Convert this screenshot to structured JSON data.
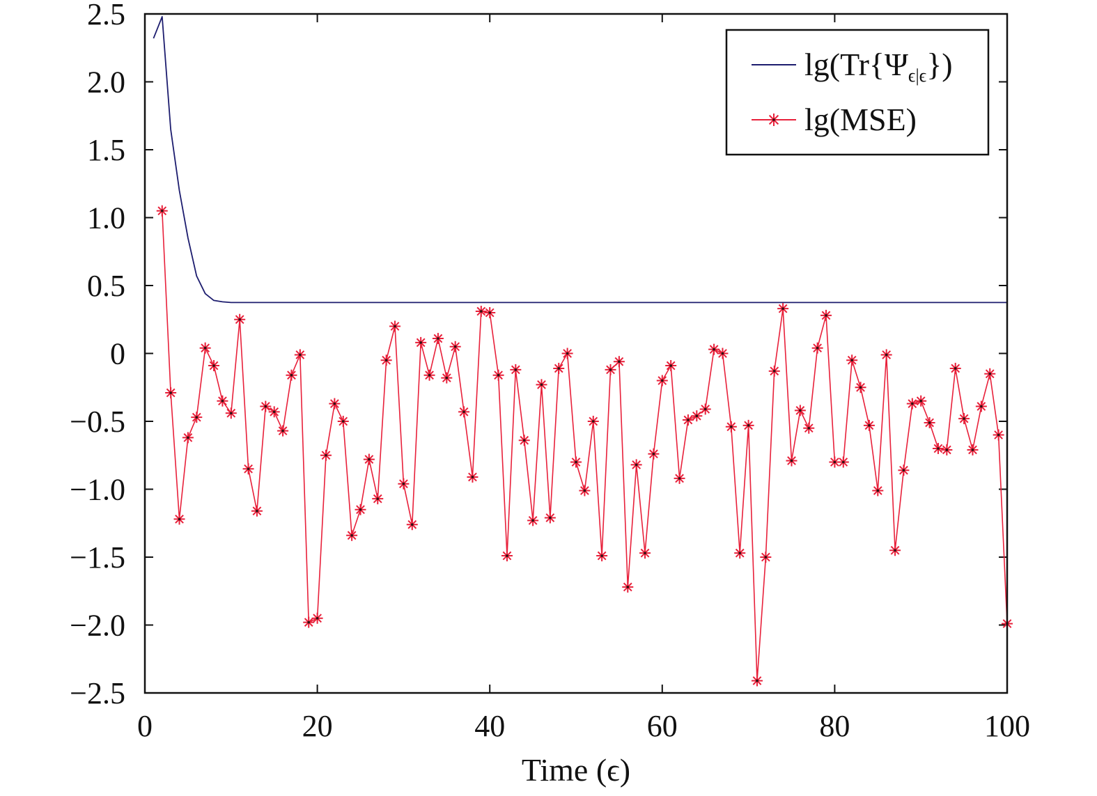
{
  "chart_data": {
    "type": "line",
    "xlabel": "Time (ϵ)",
    "ylabel": "",
    "xlim": [
      0,
      100
    ],
    "ylim": [
      -2.5,
      2.5
    ],
    "x_ticks": [
      "0",
      "20",
      "40",
      "60",
      "80",
      "100"
    ],
    "y_ticks": [
      "−2.5",
      "−2.0",
      "−1.5",
      "−1.0",
      "−0.5",
      "0",
      "0.5",
      "1.0",
      "1.5",
      "2.0",
      "2.5"
    ],
    "legend_position": "top-right",
    "series": [
      {
        "name": "lg(Tr{Ψϵ|ϵ})",
        "legend_main": "lg(Tr{Ψ",
        "legend_sub": "ϵ|ϵ",
        "legend_end": "})",
        "color": "#1c1c6e",
        "marker": "none",
        "x": [
          1,
          2,
          3,
          4,
          5,
          6,
          7,
          8,
          9,
          10,
          11,
          12,
          13,
          14,
          15,
          20,
          30,
          40,
          50,
          60,
          70,
          80,
          90,
          100
        ],
        "y": [
          2.32,
          2.48,
          1.65,
          1.2,
          0.85,
          0.57,
          0.44,
          0.39,
          0.38,
          0.375,
          0.375,
          0.375,
          0.375,
          0.375,
          0.375,
          0.375,
          0.375,
          0.375,
          0.375,
          0.375,
          0.375,
          0.375,
          0.375,
          0.375
        ]
      },
      {
        "name": "lg(MSE)",
        "legend_main": "lg(MSE)",
        "color": "#e8203a",
        "marker": "*",
        "x": [
          2,
          3,
          4,
          5,
          6,
          7,
          8,
          9,
          10,
          11,
          12,
          13,
          14,
          15,
          16,
          17,
          18,
          19,
          20,
          21,
          22,
          23,
          24,
          25,
          26,
          27,
          28,
          29,
          30,
          31,
          32,
          33,
          34,
          35,
          36,
          37,
          38,
          39,
          40,
          41,
          42,
          43,
          44,
          45,
          46,
          47,
          48,
          49,
          50,
          51,
          52,
          53,
          54,
          55,
          56,
          57,
          58,
          59,
          60,
          61,
          62,
          63,
          64,
          65,
          66,
          67,
          68,
          69,
          70,
          71,
          72,
          73,
          74,
          75,
          76,
          77,
          78,
          79,
          80,
          81,
          82,
          83,
          84,
          85,
          86,
          87,
          88,
          89,
          90,
          91,
          92,
          93,
          94,
          95,
          96,
          97,
          98,
          99,
          100
        ],
        "y": [
          1.05,
          -0.29,
          -1.22,
          -0.62,
          -0.47,
          0.04,
          -0.09,
          -0.35,
          -0.44,
          0.25,
          -0.85,
          -1.16,
          -0.39,
          -0.43,
          -0.57,
          -0.16,
          -0.01,
          -1.98,
          -1.95,
          -0.75,
          -0.37,
          -0.5,
          -1.34,
          -1.15,
          -0.78,
          -1.07,
          -0.05,
          0.2,
          -0.96,
          -1.26,
          0.08,
          -0.16,
          0.11,
          -0.18,
          0.05,
          -0.43,
          -0.91,
          0.31,
          0.3,
          -0.16,
          -1.49,
          -0.12,
          -0.64,
          -1.23,
          -0.23,
          -1.21,
          -0.11,
          0.0,
          -0.8,
          -1.01,
          -0.5,
          -1.49,
          -0.12,
          -0.06,
          -1.72,
          -0.82,
          -1.47,
          -0.74,
          -0.2,
          -0.09,
          -0.92,
          -0.49,
          -0.46,
          -0.41,
          0.03,
          0.0,
          -0.54,
          -1.47,
          -0.53,
          -2.41,
          -1.5,
          -0.13,
          0.33,
          -0.79,
          -0.42,
          -0.55,
          0.04,
          0.28,
          -0.8,
          -0.8,
          -0.05,
          -0.25,
          -0.53,
          -1.01,
          -0.01,
          -1.45,
          -0.86,
          -0.37,
          -0.35,
          -0.51,
          -0.7,
          -0.71,
          -0.11,
          -0.48,
          -0.71,
          -0.39,
          -0.15,
          -0.6,
          -1.99
        ]
      }
    ]
  }
}
